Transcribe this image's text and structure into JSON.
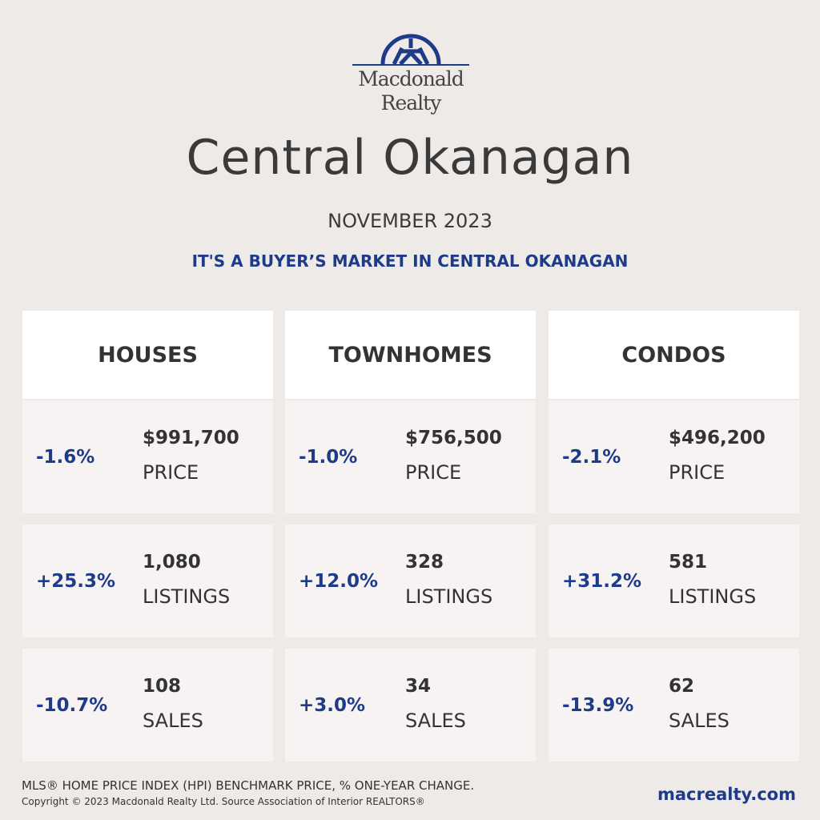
{
  "brand": {
    "name_line1": "Macdonald",
    "name_line2": "Realty",
    "color": "#1e3b8a"
  },
  "title": "Central Okanagan",
  "month": "NOVEMBER 2023",
  "tagline": "IT'S A BUYER’S MARKET IN CENTRAL OKANAGAN",
  "columns": [
    {
      "heading": "HOUSES",
      "rows": [
        {
          "change": "-1.6%",
          "value": "$991,700",
          "label": "PRICE"
        },
        {
          "change": "+25.3%",
          "value": "1,080",
          "label": "LISTINGS"
        },
        {
          "change": "-10.7%",
          "value": "108",
          "label": "SALES"
        }
      ]
    },
    {
      "heading": "TOWNHOMES",
      "rows": [
        {
          "change": "-1.0%",
          "value": "$756,500",
          "label": "PRICE"
        },
        {
          "change": "+12.0%",
          "value": "328",
          "label": "LISTINGS"
        },
        {
          "change": "+3.0%",
          "value": "34",
          "label": "SALES"
        }
      ]
    },
    {
      "heading": "CONDOS",
      "rows": [
        {
          "change": "-2.1%",
          "value": "$496,200",
          "label": "PRICE"
        },
        {
          "change": "+31.2%",
          "value": "581",
          "label": "LISTINGS"
        },
        {
          "change": "-13.9%",
          "value": "62",
          "label": "SALES"
        }
      ]
    }
  ],
  "footer": {
    "note": "MLS® HOME PRICE INDEX (HPI) BENCHMARK PRICE, % ONE-YEAR CHANGE.",
    "copyright": "Copyright © 2023 Macdonald Realty Ltd. Source Association of Interior REALTORS®",
    "website": "macrealty.com"
  }
}
